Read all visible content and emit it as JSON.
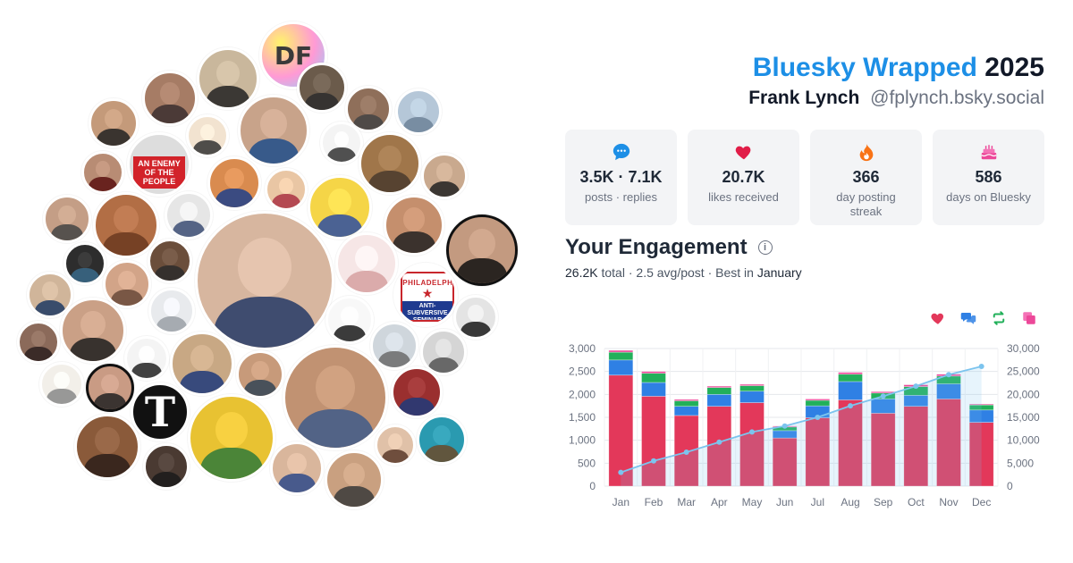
{
  "header": {
    "brand": "Bluesky Wrapped",
    "year": "2025",
    "name": "Frank Lynch",
    "handle": "@fplynch.bsky.social"
  },
  "stats": [
    {
      "icon": "speech-bubble-icon",
      "value": "3.5K · 7.1K",
      "label": "posts · replies",
      "color": "#1d8fe6"
    },
    {
      "icon": "heart-icon",
      "value": "20.7K",
      "label": "likes received",
      "color": "#e11d48"
    },
    {
      "icon": "flame-icon",
      "value": "366",
      "label": "day posting streak",
      "color": "#f97316"
    },
    {
      "icon": "cake-icon",
      "value": "586",
      "label": "days on Bluesky",
      "color": "#ec4899"
    }
  ],
  "engagement": {
    "title": "Your Engagement",
    "total_value": "26.2K",
    "total_label": "total",
    "avg": "2.5 avg/post",
    "best_prefix": "Best in",
    "best_month": "January"
  },
  "colors": {
    "likes": "#e3385a",
    "replies": "#2f80e4",
    "reposts": "#22b05a",
    "quotes": "#ec4899",
    "cumulative": "#7cc4ee",
    "brand": "#1d8fe6"
  },
  "avatars": {
    "df_text": "DF",
    "enemy_text": "AN ENEMY OF THE PEOPLE",
    "nyt_text": "T",
    "seminar_top": "PHILADELPHIA",
    "seminar_bottom": "ANTI-SUBVERSIVE SEMINAR"
  },
  "chart_data": {
    "type": "bar",
    "categories": [
      "Jan",
      "Feb",
      "Mar",
      "Apr",
      "May",
      "Jun",
      "Jul",
      "Aug",
      "Sep",
      "Oct",
      "Nov",
      "Dec"
    ],
    "series": [
      {
        "name": "likes",
        "values": [
          2420,
          1960,
          1540,
          1740,
          1820,
          1050,
          1490,
          1880,
          1590,
          1740,
          1900,
          1390
        ]
      },
      {
        "name": "replies",
        "values": [
          330,
          300,
          200,
          260,
          250,
          160,
          260,
          400,
          310,
          240,
          330,
          270
        ]
      },
      {
        "name": "reposts",
        "values": [
          170,
          200,
          120,
          150,
          120,
          80,
          120,
          160,
          130,
          190,
          170,
          110
        ]
      },
      {
        "name": "quotes",
        "values": [
          40,
          40,
          30,
          30,
          30,
          20,
          30,
          40,
          30,
          40,
          40,
          20
        ]
      }
    ],
    "cumulative": {
      "values": [
        3000,
        5500,
        7400,
        9600,
        11800,
        13100,
        15000,
        17500,
        19600,
        21800,
        24300,
        26100
      ]
    },
    "y_left": {
      "range": [
        0,
        3000
      ],
      "ticks": [
        "0",
        "500",
        "1,000",
        "1,500",
        "2,000",
        "2,500",
        "3,000"
      ]
    },
    "y_right": {
      "range": [
        0,
        30000
      ],
      "ticks": [
        "0",
        "5,000",
        "10,000",
        "15,000",
        "20,000",
        "25,000",
        "30,000"
      ]
    },
    "grid": true,
    "legend_position": "top-right"
  }
}
